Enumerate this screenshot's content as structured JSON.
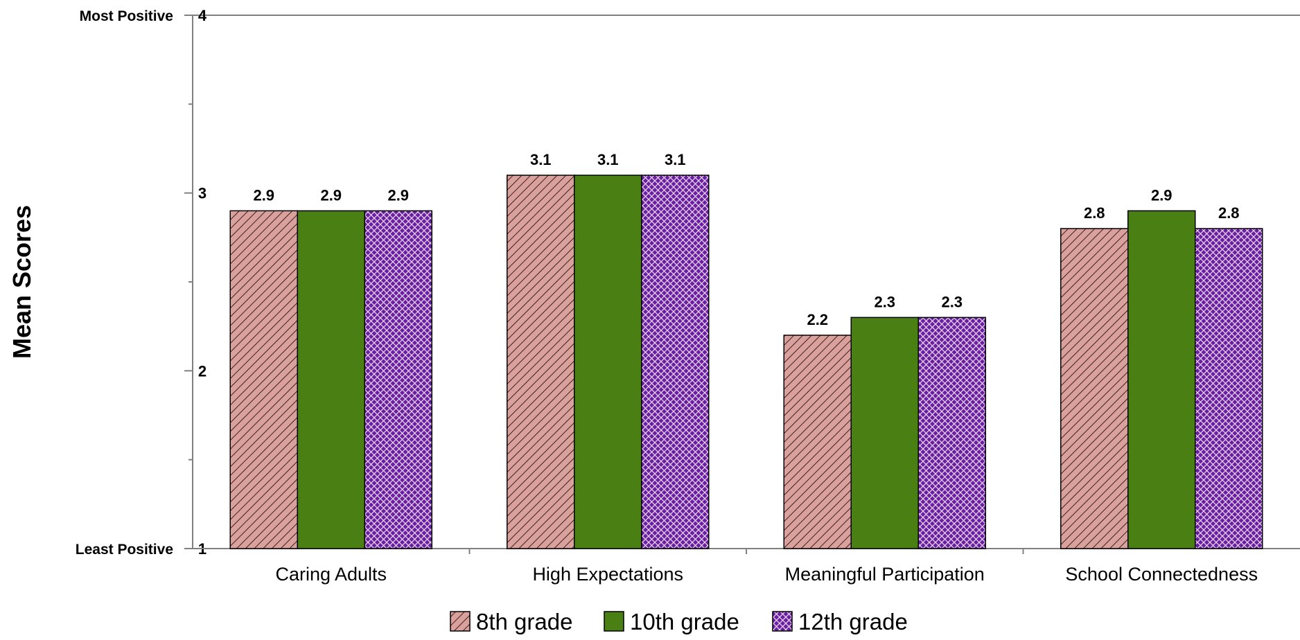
{
  "chart_data": {
    "type": "bar",
    "ylabel": "Mean Scores",
    "ylim": [
      1,
      4
    ],
    "yticks": [
      1,
      2,
      3,
      4
    ],
    "y_min_label": "Least Positive",
    "y_max_label": "Most Positive",
    "categories": [
      "Caring Adults",
      "High Expectations",
      "Meaningful Participation",
      "School Connectedness"
    ],
    "series": [
      {
        "name": "8th grade",
        "values": [
          2.9,
          3.1,
          2.2,
          2.8
        ],
        "color": "#d9a09c",
        "pattern": "diagonal-hatch"
      },
      {
        "name": "10th grade",
        "values": [
          2.9,
          3.1,
          2.3,
          2.9
        ],
        "color": "#4a7f14",
        "pattern": "solid"
      },
      {
        "name": "12th grade",
        "values": [
          2.9,
          3.1,
          2.3,
          2.8
        ],
        "color": "#6a1fa0",
        "pattern": "crosshatch"
      }
    ],
    "grid": false,
    "legend_position": "bottom"
  }
}
